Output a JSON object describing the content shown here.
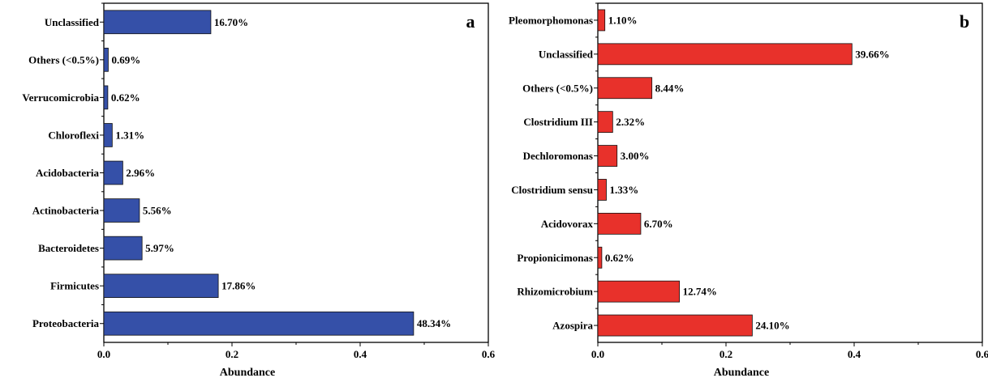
{
  "chart_data": [
    {
      "type": "bar",
      "orientation": "horizontal",
      "panel_label": "a",
      "xlabel": "Abundance",
      "xlim": [
        0.0,
        0.6
      ],
      "xticks": [
        "0.0",
        "0.2",
        "0.4",
        "0.6"
      ],
      "bar_color": "#3550a8",
      "categories": [
        "Unclassified",
        "Others (<0.5%)",
        "Verrucomicrobia",
        "Chloroflexi",
        "Acidobacteria",
        "Actinobacteria",
        "Bacteroidetes",
        "Firmicutes",
        "Proteobacteria"
      ],
      "values": [
        0.167,
        0.0069,
        0.0062,
        0.0131,
        0.0296,
        0.0556,
        0.0597,
        0.1786,
        0.4834
      ],
      "value_labels": [
        "16.70%",
        "0.69%",
        "0.62%",
        "1.31%",
        "2.96%",
        "5.56%",
        "5.97%",
        "17.86%",
        "48.34%"
      ]
    },
    {
      "type": "bar",
      "orientation": "horizontal",
      "panel_label": "b",
      "xlabel": "Abundance",
      "xlim": [
        0.0,
        0.6
      ],
      "xticks": [
        "0.0",
        "0.2",
        "0.4",
        "0.6"
      ],
      "bar_color": "#e8312b",
      "categories": [
        "Pleomorphomonas",
        "Unclassified",
        "Others (<0.5%)",
        "Clostridium III",
        "Dechloromonas",
        "Clostridium sensu",
        "Acidovorax",
        "Propionicimonas",
        "Rhizomicrobium",
        "Azospira"
      ],
      "values": [
        0.011,
        0.3966,
        0.0844,
        0.0232,
        0.03,
        0.0133,
        0.067,
        0.0062,
        0.1274,
        0.241
      ],
      "value_labels": [
        "1.10%",
        "39.66%",
        "8.44%",
        "2.32%",
        "3.00%",
        "1.33%",
        "6.70%",
        "0.62%",
        "12.74%",
        "24.10%"
      ]
    }
  ]
}
